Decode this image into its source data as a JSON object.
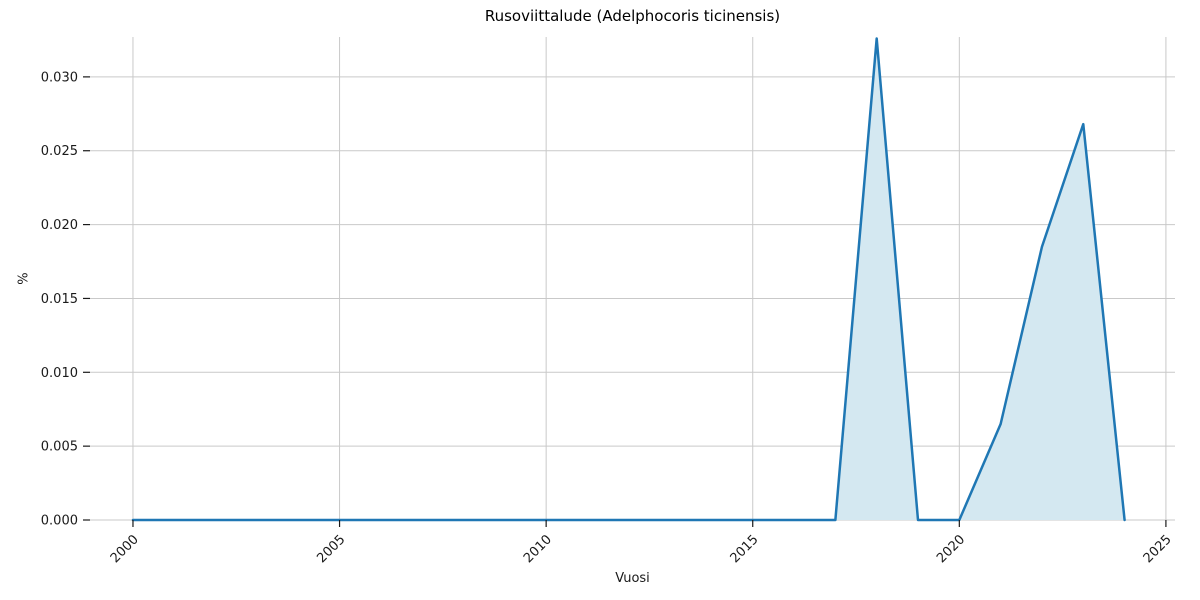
{
  "chart_data": {
    "type": "area",
    "title": "Rusoviittalude (Adelphocoris ticinensis)",
    "xlabel": "Vuosi",
    "ylabel": "%",
    "x": [
      2000,
      2001,
      2002,
      2003,
      2004,
      2005,
      2006,
      2007,
      2008,
      2009,
      2010,
      2011,
      2012,
      2013,
      2014,
      2015,
      2016,
      2017,
      2018,
      2019,
      2020,
      2021,
      2022,
      2023,
      2024
    ],
    "values": [
      0,
      0,
      0,
      0,
      0,
      0,
      0,
      0,
      0,
      0,
      0,
      0,
      0,
      0,
      0,
      0,
      0,
      0,
      0.0326,
      0,
      0,
      0.0065,
      0.0185,
      0.0268,
      0
    ],
    "xlim": [
      1998.96,
      2025.22
    ],
    "ylim": [
      0,
      0.0327
    ],
    "xticks": {
      "values": [
        2000,
        2005,
        2010,
        2015,
        2020,
        2025
      ],
      "labels": [
        "2000",
        "2005",
        "2010",
        "2015",
        "2020",
        "2025"
      ]
    },
    "yticks": {
      "values": [
        0.0,
        0.005,
        0.01,
        0.015,
        0.02,
        0.025,
        0.03
      ],
      "labels": [
        "0.000",
        "0.005",
        "0.010",
        "0.015",
        "0.020",
        "0.025",
        "0.030"
      ]
    },
    "grid": true,
    "legend": null,
    "colors": {
      "line": "#1f77b4",
      "fill": "#d4e8f1",
      "grid": "#c9c9c9",
      "tick": "#1a1a1a",
      "text": "#1a1a1a",
      "background": "#ffffff"
    }
  }
}
